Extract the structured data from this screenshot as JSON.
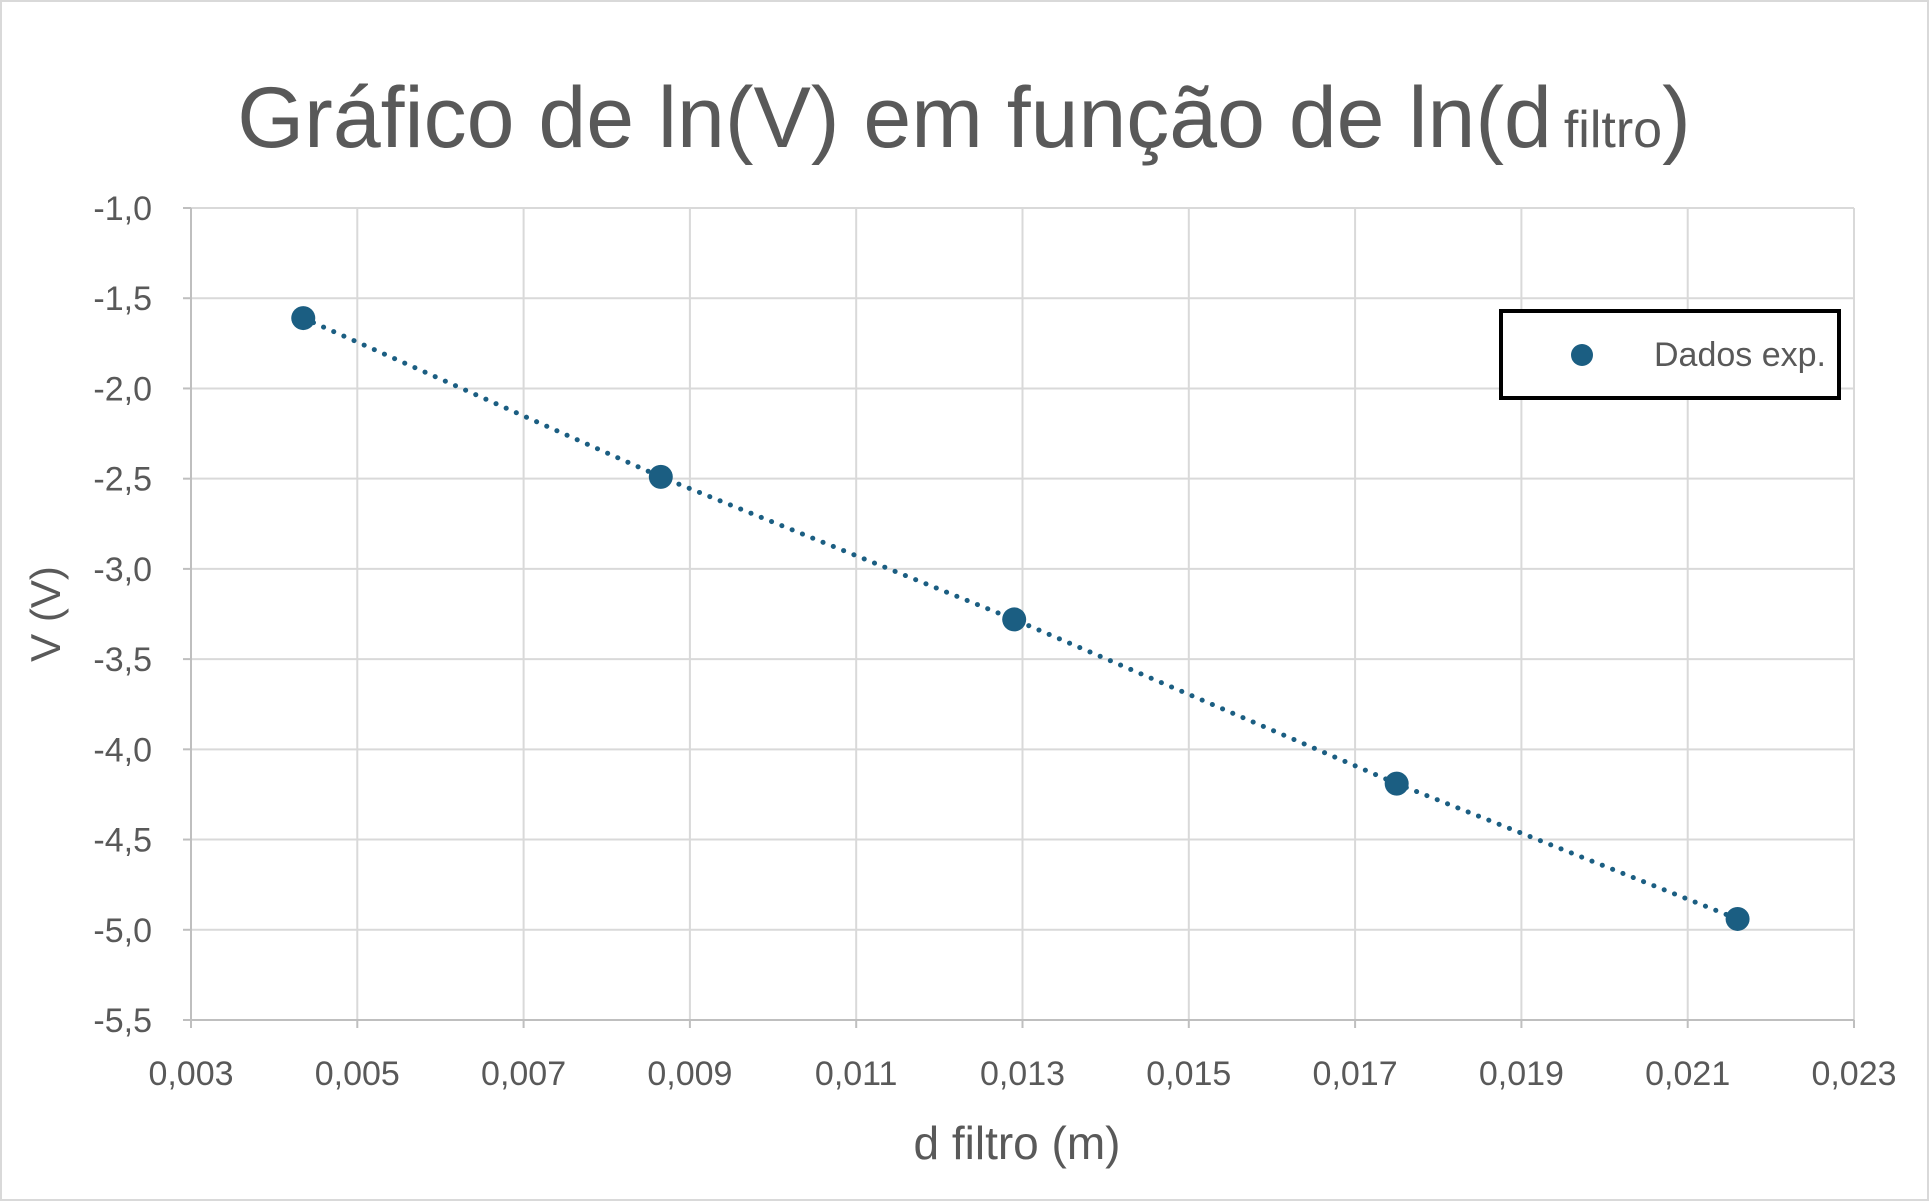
{
  "chart_data": {
    "type": "scatter",
    "title": {
      "main": "Gráfico de ln(V) em função de ln(d",
      "subscript": "filtro",
      "close": ")"
    },
    "xlabel": "d filtro (m)",
    "ylabel": "V (V)",
    "xlim": [
      0.003,
      0.023
    ],
    "ylim": [
      -5.5,
      -1.0
    ],
    "x_ticks": [
      "0,003",
      "0,005",
      "0,007",
      "0,009",
      "0,011",
      "0,013",
      "0,015",
      "0,017",
      "0,019",
      "0,021",
      "0,023"
    ],
    "y_ticks": [
      "-1,0",
      "-1,5",
      "-2,0",
      "-2,5",
      "-3,0",
      "-3,5",
      "-4,0",
      "-4,5",
      "-5,0",
      "-5,5"
    ],
    "grid": true,
    "legend_position": "top-right",
    "series": [
      {
        "name": "Dados exp.",
        "color": "#1b5e82",
        "marker": "circle",
        "x": [
          0.00435,
          0.00865,
          0.0129,
          0.0175,
          0.0216
        ],
        "y": [
          -1.61,
          -2.49,
          -3.28,
          -4.19,
          -4.94
        ]
      }
    ],
    "trendline": {
      "type": "dotted",
      "color": "#1b5e82"
    }
  }
}
